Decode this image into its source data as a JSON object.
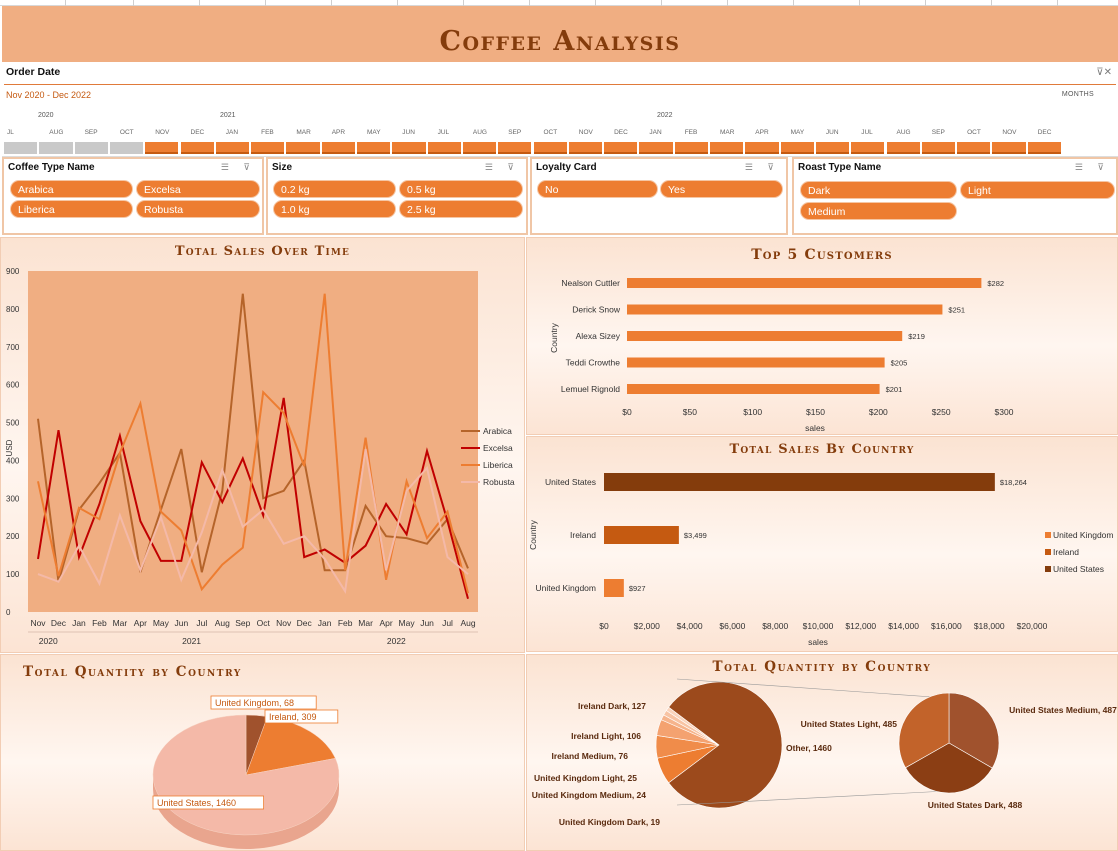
{
  "header": {
    "title": "Coffee Analysis"
  },
  "timeline": {
    "label": "Order Date",
    "range_text": "Nov 2020 - Dec 2022",
    "level": "MONTHS",
    "years": [
      "2020",
      "2021",
      "2022"
    ],
    "months": [
      "JL",
      "AUG",
      "SEP",
      "OCT",
      "NOV",
      "DEC",
      "JAN",
      "FEB",
      "MAR",
      "APR",
      "MAY",
      "JUN",
      "JUL",
      "AUG",
      "SEP",
      "OCT",
      "NOV",
      "DEC",
      "JAN",
      "FEB",
      "MAR",
      "APR",
      "MAY",
      "JUN",
      "JUL",
      "AUG",
      "SEP",
      "OCT",
      "NOV",
      "DEC"
    ],
    "selected_from": "NOV 2020",
    "selected_to": "DEC 2022"
  },
  "slicers": {
    "coffee_type": {
      "title": "Coffee Type Name",
      "items": [
        "Arabica",
        "Excelsa",
        "Liberica",
        "Robusta"
      ]
    },
    "size": {
      "title": "Size",
      "items": [
        "0.2 kg",
        "0.5 kg",
        "1.0 kg",
        "2.5 kg"
      ]
    },
    "loyalty": {
      "title": "Loyalty Card",
      "items": [
        "No",
        "Yes"
      ]
    },
    "roast": {
      "title": "Roast Type Name",
      "items": [
        "Dark",
        "Light",
        "Medium"
      ]
    }
  },
  "colors": {
    "accent": "#ed7d31",
    "brand_dark": "#843c0c",
    "arabica": "#b5642a",
    "excelsa": "#c00000",
    "liberica": "#ed7d31",
    "robusta": "#f4b9a8"
  },
  "chart_data": [
    {
      "type": "line",
      "title": "Total Sales Over Time",
      "ylabel": "USD",
      "ylim": [
        0,
        900
      ],
      "yticks": [
        "0",
        "100",
        "200",
        "300",
        "400",
        "500",
        "600",
        "700",
        "800",
        "900"
      ],
      "x": [
        "Nov",
        "Dec",
        "Jan",
        "Feb",
        "Mar",
        "Apr",
        "May",
        "Jun",
        "Jul",
        "Aug",
        "Sep",
        "Oct",
        "Nov",
        "Dec",
        "Jan",
        "Feb",
        "Mar",
        "Apr",
        "May",
        "Jun",
        "Jul",
        "Aug"
      ],
      "year_labels": [
        {
          "label": "2020",
          "at": 0.5
        },
        {
          "label": "2021",
          "at": 7.5
        },
        {
          "label": "2022",
          "at": 17.5
        }
      ],
      "series": [
        {
          "name": "Arabica",
          "color": "#b5642a",
          "values": [
            510,
            80,
            270,
            340,
            420,
            105,
            270,
            430,
            105,
            320,
            840,
            300,
            320,
            400,
            110,
            110,
            280,
            200,
            195,
            180,
            245,
            115
          ]
        },
        {
          "name": "Excelsa",
          "color": "#c00000",
          "values": [
            140,
            480,
            145,
            285,
            465,
            240,
            135,
            135,
            395,
            290,
            405,
            255,
            565,
            145,
            165,
            130,
            175,
            285,
            205,
            425,
            240,
            35
          ]
        },
        {
          "name": "Liberica",
          "color": "#ed7d31",
          "values": [
            345,
            95,
            275,
            245,
            420,
            550,
            265,
            215,
            60,
            125,
            170,
            580,
            525,
            385,
            840,
            110,
            460,
            85,
            345,
            195,
            265,
            50
          ]
        },
        {
          "name": "Robusta",
          "color": "#f4b9a8",
          "values": [
            100,
            80,
            175,
            75,
            255,
            110,
            250,
            85,
            210,
            375,
            225,
            270,
            180,
            200,
            140,
            55,
            430,
            110,
            320,
            380,
            145,
            100
          ]
        }
      ]
    },
    {
      "type": "bar",
      "title": "Top 5 Customers",
      "ylabel": "Country",
      "xlabel": "sales",
      "xlim": [
        0,
        300
      ],
      "xticks": [
        "$0",
        "$50",
        "$100",
        "$150",
        "$200",
        "$250",
        "$300"
      ],
      "categories": [
        "Nealson Cuttler",
        "Derick Snow",
        "Alexa Sizey",
        "Teddi Crowthe",
        "Lemuel Rignold"
      ],
      "values": [
        282,
        251,
        219,
        205,
        201
      ],
      "labels": [
        "$282",
        "$251",
        "$219",
        "$205",
        "$201"
      ]
    },
    {
      "type": "bar",
      "title": "Total Sales By Country",
      "ylabel": "Country",
      "xlabel": "sales",
      "xlim": [
        0,
        20000
      ],
      "xticks": [
        "$0",
        "$2,000",
        "$4,000",
        "$6,000",
        "$8,000",
        "$10,000",
        "$12,000",
        "$14,000",
        "$16,000",
        "$18,000",
        "$20,000"
      ],
      "categories": [
        "United States",
        "Ireland",
        "United Kingdom"
      ],
      "values": [
        18264,
        3499,
        927
      ],
      "labels": [
        "$18,264",
        "$3,499",
        "$927"
      ],
      "colors": [
        "#843c0c",
        "#c55a11",
        "#ed7d31"
      ],
      "legend": [
        "United Kingdom",
        "Ireland",
        "United States"
      ],
      "legend_colors": [
        "#ed7d31",
        "#c55a11",
        "#843c0c"
      ],
      "legend_position": "right"
    },
    {
      "type": "pie",
      "title": "Total Quantity by Country",
      "slices": [
        {
          "label": "United Kingdom, 68",
          "value": 68,
          "color": "#a0522d"
        },
        {
          "label": "Ireland, 309",
          "value": 309,
          "color": "#ed7d31"
        },
        {
          "label": "United States, 1460",
          "value": 1460,
          "color": "#f4b9a8"
        }
      ]
    },
    {
      "type": "pie",
      "title": "Total Quantity by Country",
      "slices": [
        {
          "label": "Ireland Dark, 127",
          "value": 127,
          "color": "#ed7d31"
        },
        {
          "label": "Ireland Light, 106",
          "value": 106,
          "color": "#f08c4a"
        },
        {
          "label": "Ireland Medium, 76",
          "value": 76,
          "color": "#f4a270"
        },
        {
          "label": "United Kingdom Light, 25",
          "value": 25,
          "color": "#f6b48c"
        },
        {
          "label": "United Kingdom Medium, 24",
          "value": 24,
          "color": "#f8c4a4"
        },
        {
          "label": "United Kingdom Dark, 19",
          "value": 19,
          "color": "#fad4bc"
        },
        {
          "label": "Other, 1460",
          "value": 1460,
          "color": "#9c4a1c"
        }
      ],
      "secondary": [
        {
          "label": "United States Medium, 487",
          "value": 487,
          "color": "#a0522d"
        },
        {
          "label": "United States Dark, 488",
          "value": 488,
          "color": "#8b3e14"
        },
        {
          "label": "United States Light, 485",
          "value": 485,
          "color": "#c2632a"
        }
      ]
    }
  ]
}
